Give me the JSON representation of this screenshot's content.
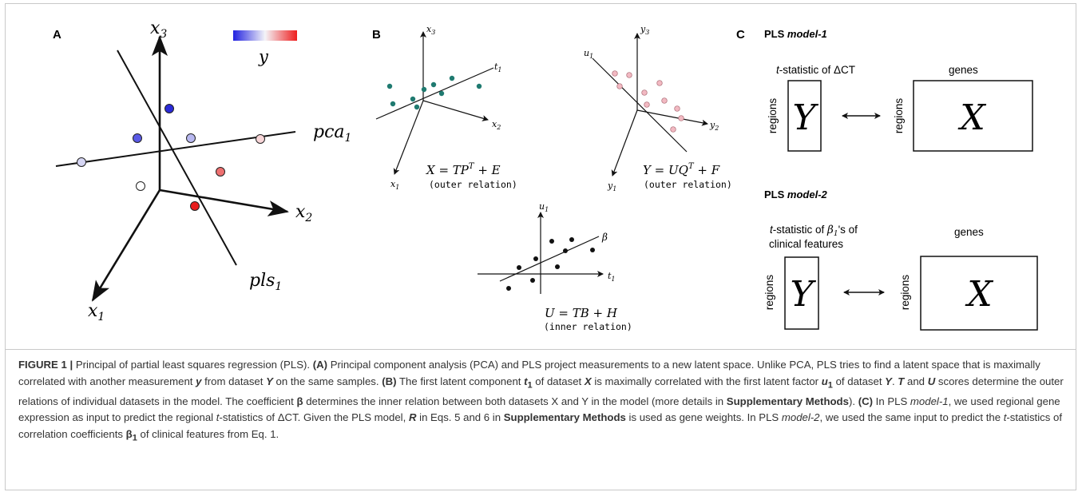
{
  "figure": {
    "panel_a": {
      "letter": "A",
      "axes": [
        "x",
        "3",
        "x",
        "2",
        "x",
        "1"
      ],
      "colorbar_label": "y",
      "lines": [
        "pca",
        "1",
        "pls",
        "1"
      ],
      "colors": {
        "blue": "#2b2bd6",
        "red": "#e8221e",
        "white": "#ffffff"
      }
    },
    "panel_b": {
      "letter": "B",
      "x_plot": {
        "axes": [
          "x",
          "3",
          "x",
          "2",
          "x",
          "1",
          "t",
          "1"
        ],
        "eq": "X = TP",
        "eq_sup": "T",
        "eq_tail": " + E",
        "rel": "(outer relation)"
      },
      "y_plot": {
        "axes": [
          "y",
          "3",
          "y",
          "2",
          "y",
          "1",
          "u",
          "1"
        ],
        "eq": "Y = UQ",
        "eq_sup": "T",
        "eq_tail": " + F",
        "rel": "(outer relation)"
      },
      "inner_plot": {
        "axes": [
          "u",
          "1",
          "t",
          "1"
        ],
        "beta": "β",
        "eq": "U = TB + H",
        "rel": "(inner relation)"
      },
      "colors": {
        "teal": "#1f7a70",
        "pink": "#f2b9c2",
        "black": "#111111"
      }
    },
    "panel_c": {
      "letter": "C",
      "model1": {
        "title_a": "PLS ",
        "title_b": "model-1",
        "top_label_italic": "t",
        "top_label_rest": "-statistic of ΔCT",
        "genes": "genes",
        "regions": "regions",
        "Y": "Y",
        "X": "X"
      },
      "model2": {
        "title_a": "PLS ",
        "title_b": "model-2",
        "top_label_italic": "t",
        "top_label_rest": "-statistic of ",
        "beta": "β",
        "beta_sub": "1",
        "top_label_rest2": "'s of",
        "top_label_line2": "clinical features",
        "genes": "genes",
        "regions": "regions",
        "Y": "Y",
        "X": "X"
      }
    }
  },
  "caption": {
    "label": "FIGURE 1 |",
    "s1": " Principal of partial least squares regression (PLS). ",
    "a": "(A)",
    "s2": " Principal component analysis (PCA) and PLS project measurements to a new latent space. Unlike PCA, PLS tries to find a latent space that is maximally correlated with another measurement ",
    "y": "y",
    "s3": " from dataset ",
    "Y": "Y",
    "s4": " on the same samples. ",
    "b": "(B)",
    "s5": " The first latent component ",
    "t1": "t",
    "t1_sub": "1",
    "s6": " of dataset ",
    "X": "X",
    "s7": " is maximally correlated with the first latent factor ",
    "u1": "u",
    "u1_sub": "1",
    "s8": " of dataset ",
    "Y2": "Y",
    "s9": ". ",
    "T": "T",
    "s10": " and ",
    "U": "U",
    "s11": " scores determine the outer relations of individual datasets in the model. The coefficient ",
    "beta": "β",
    "s12": " determines the inner relation between both datasets X and Y in the model (more details in ",
    "supp1": "Supplementary Methods",
    "s13": "). ",
    "c": "(C)",
    "s14": " In PLS ",
    "m1": "model-1",
    "s15": ", we used regional gene expression as input to predict the regional ",
    "t_stat": "t",
    "s16": "-statistics of ΔCT. Given the PLS model, ",
    "R": "R",
    "s17": " in Eqs. 5 and 6 in ",
    "supp2": "Supplementary Methods",
    "s18": " is used as gene weights. In PLS ",
    "m2": "model-2",
    "s19": ", we used the same input to predict the ",
    "t_stat2": "t",
    "s20": "-statistics of correlation coefficients ",
    "beta1": "β",
    "beta1_sub": "1",
    "s21": " of clinical features from Eq. 1."
  }
}
